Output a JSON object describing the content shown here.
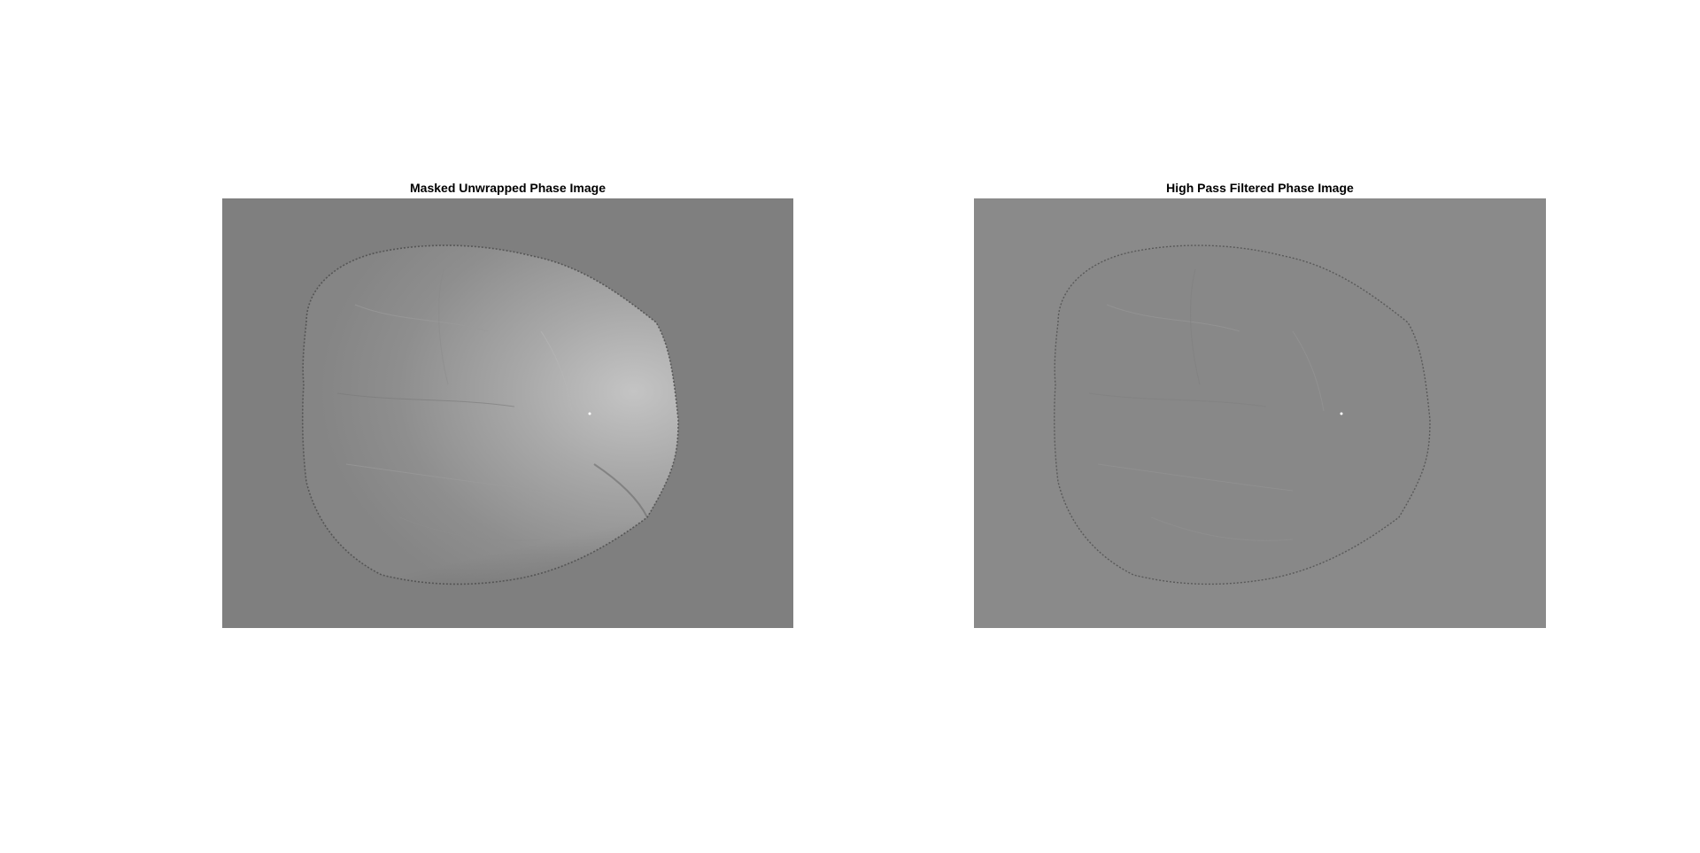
{
  "figure": {
    "panels": [
      {
        "title": "Masked Unwrapped Phase Image",
        "background_color": "#7f7f7f",
        "tissue_color": "#8c8c8c"
      },
      {
        "title": "High Pass Filtered Phase Image",
        "background_color": "#8a8a8a",
        "tissue_color": "#888888"
      }
    ]
  }
}
